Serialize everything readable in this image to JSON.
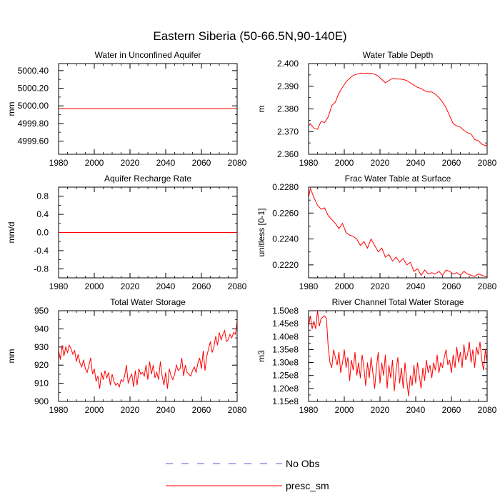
{
  "figure_title": "Eastern Siberia (50-66.5N,90-140E)",
  "legend": [
    {
      "label": "No Obs",
      "color": "#0000ff",
      "style": "dashed"
    },
    {
      "label": "presc_sm",
      "color": "#ff0000",
      "style": "solid"
    }
  ],
  "chart_data": [
    {
      "id": "wa",
      "type": "line",
      "title": "Water in Unconfined Aquifer",
      "ylabel": "mm",
      "xlim": [
        1980,
        2080
      ],
      "ylim": [
        4999.45,
        5000.48
      ],
      "xticks": [
        1980,
        2000,
        2020,
        2040,
        2060,
        2080
      ],
      "xtick_labels": [
        "1980",
        "2000",
        "2020",
        "2040",
        "2060",
        "2080"
      ],
      "yticks": [
        4999.6,
        4999.8,
        5000.0,
        5000.2,
        5000.4
      ],
      "ytick_labels": [
        "4999.60",
        "4999.80",
        "5000.00",
        "5000.20",
        "5000.40"
      ],
      "series": [
        {
          "name": "presc_sm",
          "color": "#ff0000",
          "x": [
            1980,
            2080
          ],
          "y": [
            4999.97,
            4999.97
          ]
        }
      ]
    },
    {
      "id": "wt",
      "type": "line",
      "title": "Water Table Depth",
      "ylabel": "m",
      "xlim": [
        1980,
        2080
      ],
      "ylim": [
        2.36,
        2.4
      ],
      "xticks": [
        1980,
        2000,
        2020,
        2040,
        2060,
        2080
      ],
      "xtick_labels": [
        "1980",
        "2000",
        "2020",
        "2040",
        "2060",
        "2080"
      ],
      "yticks": [
        2.36,
        2.37,
        2.38,
        2.39,
        2.4
      ],
      "ytick_labels": [
        "2.360",
        "2.370",
        "2.380",
        "2.390",
        "2.400"
      ],
      "series": [
        {
          "name": "presc_sm",
          "color": "#ff0000",
          "x": [
            1980,
            1981,
            1983,
            1985,
            1987,
            1989,
            1991,
            1993,
            1995,
            1997,
            1999,
            2001,
            2003,
            2005,
            2007,
            2009,
            2011,
            2013,
            2015,
            2017,
            2019,
            2021,
            2023,
            2025,
            2027,
            2029,
            2031,
            2033,
            2035,
            2037,
            2039,
            2041,
            2043,
            2045,
            2047,
            2049,
            2051,
            2053,
            2055,
            2057,
            2059,
            2061,
            2063,
            2065,
            2067,
            2069,
            2071,
            2073,
            2075,
            2077,
            2079,
            2080
          ],
          "y": [
            2.3725,
            2.3735,
            2.3715,
            2.371,
            2.3745,
            2.374,
            2.3765,
            2.3815,
            2.383,
            2.387,
            2.3895,
            2.392,
            2.3935,
            2.3948,
            2.3953,
            2.3958,
            2.3957,
            2.3958,
            2.3957,
            2.3953,
            2.3945,
            2.393,
            2.3915,
            2.3925,
            2.3935,
            2.3932,
            2.3932,
            2.393,
            2.3925,
            2.3915,
            2.3905,
            2.3895,
            2.389,
            2.388,
            2.3875,
            2.3875,
            2.3865,
            2.385,
            2.383,
            2.3805,
            2.377,
            2.3735,
            2.3725,
            2.372,
            2.3705,
            2.3695,
            2.369,
            2.3665,
            2.366,
            2.3645,
            2.3638,
            2.364
          ]
        }
      ]
    },
    {
      "id": "ar",
      "type": "line",
      "title": "Aquifer Recharge Rate",
      "ylabel": "mm/d",
      "xlim": [
        1980,
        2080
      ],
      "ylim": [
        -1.0,
        1.0
      ],
      "xticks": [
        1980,
        2000,
        2020,
        2040,
        2060,
        2080
      ],
      "xtick_labels": [
        "1980",
        "2000",
        "2020",
        "2040",
        "2060",
        "2080"
      ],
      "yticks": [
        -0.8,
        -0.4,
        0.0,
        0.4,
        0.8
      ],
      "ytick_labels": [
        "-0.8",
        "-0.4",
        "0.0",
        "0.4",
        "0.8"
      ],
      "series": [
        {
          "name": "presc_sm",
          "color": "#ff0000",
          "x": [
            1980,
            2080
          ],
          "y": [
            0.0,
            0.0
          ]
        }
      ]
    },
    {
      "id": "fw",
      "type": "line",
      "title": "Frac Water Table at Surface",
      "ylabel": "unitless [0-1]",
      "xlim": [
        1980,
        2080
      ],
      "ylim": [
        0.221,
        0.228
      ],
      "xticks": [
        1980,
        2000,
        2020,
        2040,
        2060,
        2080
      ],
      "xtick_labels": [
        "1980",
        "2000",
        "2020",
        "2040",
        "2060",
        "2080"
      ],
      "yticks": [
        0.222,
        0.224,
        0.226,
        0.228
      ],
      "ytick_labels": [
        "0.2220",
        "0.2240",
        "0.2260",
        "0.2280"
      ],
      "series": [
        {
          "name": "presc_sm",
          "color": "#ff0000",
          "x": [
            1980,
            1981,
            1983,
            1985,
            1987,
            1989,
            1991,
            1993,
            1995,
            1997,
            1999,
            2001,
            2003,
            2005,
            2007,
            2009,
            2011,
            2013,
            2015,
            2017,
            2019,
            2021,
            2023,
            2025,
            2027,
            2029,
            2031,
            2033,
            2035,
            2037,
            2039,
            2041,
            2043,
            2045,
            2047,
            2049,
            2051,
            2053,
            2055,
            2057,
            2059,
            2061,
            2063,
            2065,
            2067,
            2069,
            2071,
            2073,
            2075,
            2077,
            2079,
            2080
          ],
          "y": [
            0.2272,
            0.2279,
            0.2272,
            0.2266,
            0.2263,
            0.2264,
            0.2258,
            0.2255,
            0.2252,
            0.2248,
            0.2252,
            0.2245,
            0.2243,
            0.2242,
            0.224,
            0.2235,
            0.2238,
            0.2233,
            0.224,
            0.2235,
            0.223,
            0.2233,
            0.2226,
            0.2228,
            0.2223,
            0.2226,
            0.2222,
            0.2225,
            0.222,
            0.2222,
            0.2215,
            0.2217,
            0.2212,
            0.2216,
            0.2213,
            0.2214,
            0.2213,
            0.2215,
            0.2212,
            0.2216,
            0.2215,
            0.2213,
            0.2214,
            0.2212,
            0.2215,
            0.2213,
            0.2212,
            0.2211,
            0.2213,
            0.2212,
            0.2211,
            0.2211
          ]
        }
      ]
    },
    {
      "id": "ws",
      "type": "line",
      "title": "Total Water Storage",
      "ylabel": "mm",
      "xlim": [
        1980,
        2080
      ],
      "ylim": [
        900,
        950
      ],
      "xticks": [
        1980,
        2000,
        2020,
        2040,
        2060,
        2080
      ],
      "xtick_labels": [
        "1980",
        "2000",
        "2020",
        "2040",
        "2060",
        "2080"
      ],
      "yticks": [
        900,
        910,
        920,
        930,
        940,
        950
      ],
      "ytick_labels": [
        "900",
        "910",
        "920",
        "930",
        "940",
        "950"
      ],
      "series": [
        {
          "name": "presc_sm",
          "color": "#ff0000",
          "x": [
            1980,
            1981,
            1982,
            1983,
            1984,
            1985,
            1986,
            1987,
            1988,
            1989,
            1990,
            1991,
            1992,
            1993,
            1994,
            1995,
            1996,
            1997,
            1998,
            1999,
            2000,
            2001,
            2002,
            2003,
            2004,
            2005,
            2006,
            2007,
            2008,
            2009,
            2010,
            2011,
            2012,
            2013,
            2014,
            2015,
            2016,
            2017,
            2018,
            2019,
            2020,
            2021,
            2022,
            2023,
            2024,
            2025,
            2026,
            2027,
            2028,
            2029,
            2030,
            2031,
            2032,
            2033,
            2034,
            2035,
            2036,
            2037,
            2038,
            2039,
            2040,
            2041,
            2042,
            2043,
            2044,
            2045,
            2046,
            2047,
            2048,
            2049,
            2050,
            2051,
            2052,
            2053,
            2054,
            2055,
            2056,
            2057,
            2058,
            2059,
            2060,
            2061,
            2062,
            2063,
            2064,
            2065,
            2066,
            2067,
            2068,
            2069,
            2070,
            2071,
            2072,
            2073,
            2074,
            2075,
            2076,
            2077,
            2078,
            2079,
            2080
          ],
          "y": [
            928,
            923,
            931,
            925,
            930,
            927,
            931,
            929,
            926,
            928,
            922,
            926,
            921,
            919,
            923,
            918,
            916,
            920,
            924,
            915,
            918,
            911,
            914,
            907,
            916,
            912,
            917,
            913,
            916,
            909,
            915,
            911,
            909,
            910,
            908,
            912,
            911,
            914,
            920,
            910,
            913,
            915,
            908,
            917,
            909,
            918,
            915,
            916,
            914,
            920,
            912,
            922,
            915,
            920,
            913,
            916,
            912,
            922,
            914,
            909,
            916,
            907,
            918,
            914,
            912,
            915,
            920,
            917,
            918,
            924,
            914,
            920,
            916,
            915,
            914,
            917,
            919,
            916,
            921,
            924,
            918,
            928,
            917,
            925,
            929,
            933,
            927,
            930,
            936,
            931,
            938,
            934,
            937,
            939,
            933,
            934,
            937,
            935,
            938,
            937,
            944
          ]
        }
      ]
    },
    {
      "id": "rc",
      "type": "line",
      "title": "River Channel Total Water Storage",
      "ylabel": "m3",
      "xlim": [
        1980,
        2080
      ],
      "ylim": [
        115000000.0,
        150000000.0
      ],
      "xticks": [
        1980,
        2000,
        2020,
        2040,
        2060,
        2080
      ],
      "xtick_labels": [
        "1980",
        "2000",
        "2020",
        "2040",
        "2060",
        "2080"
      ],
      "yticks": [
        115000000.0,
        120000000.0,
        125000000.0,
        130000000.0,
        135000000.0,
        140000000.0,
        145000000.0,
        150000000.0
      ],
      "ytick_labels": [
        "1.15e8",
        "1.20e8",
        "1.25e8",
        "1.30e8",
        "1.35e8",
        "1.40e8",
        "1.45e8",
        "1.50e8"
      ],
      "series": [
        {
          "name": "presc_sm",
          "color": "#ff0000",
          "x": [
            1980,
            1981,
            1982,
            1983,
            1984,
            1985,
            1986,
            1987,
            1988,
            1989,
            1990,
            1991,
            1992,
            1993,
            1994,
            1995,
            1996,
            1997,
            1998,
            1999,
            2000,
            2001,
            2002,
            2003,
            2004,
            2005,
            2006,
            2007,
            2008,
            2009,
            2010,
            2011,
            2012,
            2013,
            2014,
            2015,
            2016,
            2017,
            2018,
            2019,
            2020,
            2021,
            2022,
            2023,
            2024,
            2025,
            2026,
            2027,
            2028,
            2029,
            2030,
            2031,
            2032,
            2033,
            2034,
            2035,
            2036,
            2037,
            2038,
            2039,
            2040,
            2041,
            2042,
            2043,
            2044,
            2045,
            2046,
            2047,
            2048,
            2049,
            2050,
            2051,
            2052,
            2053,
            2054,
            2055,
            2056,
            2057,
            2058,
            2059,
            2060,
            2061,
            2062,
            2063,
            2064,
            2065,
            2066,
            2067,
            2068,
            2069,
            2070,
            2071,
            2072,
            2073,
            2074,
            2075,
            2076,
            2077,
            2078,
            2079,
            2080
          ],
          "y": [
            144000000.0,
            148000000.0,
            143000000.0,
            146000000.0,
            143000000.0,
            150000000.0,
            144000000.0,
            147000000.0,
            147500000.0,
            148000000.0,
            147000000.0,
            136000000.0,
            130000000.0,
            128000000.0,
            135000000.0,
            132000000.0,
            129000000.0,
            134000000.0,
            126000000.0,
            130000000.0,
            135000000.0,
            128000000.0,
            132000000.0,
            123000000.0,
            131000000.0,
            127000000.0,
            134000000.0,
            125000000.0,
            130000000.0,
            124000000.0,
            133000000.0,
            128000000.0,
            121000000.0,
            130000000.0,
            124000000.0,
            132000000.0,
            126000000.0,
            120000000.0,
            128000000.0,
            134000000.0,
            122000000.0,
            130000000.0,
            125000000.0,
            133000000.0,
            120000000.0,
            129000000.0,
            124000000.0,
            131000000.0,
            119000000.0,
            127000000.0,
            132000000.0,
            122000000.0,
            128000000.0,
            120000000.0,
            130000000.0,
            123000000.0,
            117000000.0,
            125000000.0,
            121000000.0,
            129000000.0,
            122000000.0,
            130000000.0,
            125000000.0,
            120000000.0,
            128000000.0,
            123000000.0,
            131000000.0,
            126000000.0,
            129000000.0,
            124000000.0,
            130000000.0,
            127000000.0,
            133000000.0,
            126000000.0,
            130000000.0,
            128000000.0,
            132000000.0,
            135000000.0,
            129000000.0,
            131000000.0,
            126000000.0,
            133000000.0,
            128000000.0,
            136000000.0,
            130000000.0,
            134000000.0,
            128000000.0,
            137000000.0,
            131000000.0,
            133000000.0,
            138000000.0,
            130000000.0,
            135000000.0,
            128000000.0,
            136000000.0,
            133000000.0,
            138000000.0,
            131000000.0,
            127000000.0,
            135000000.0,
            130000000.0
          ]
        }
      ]
    }
  ]
}
